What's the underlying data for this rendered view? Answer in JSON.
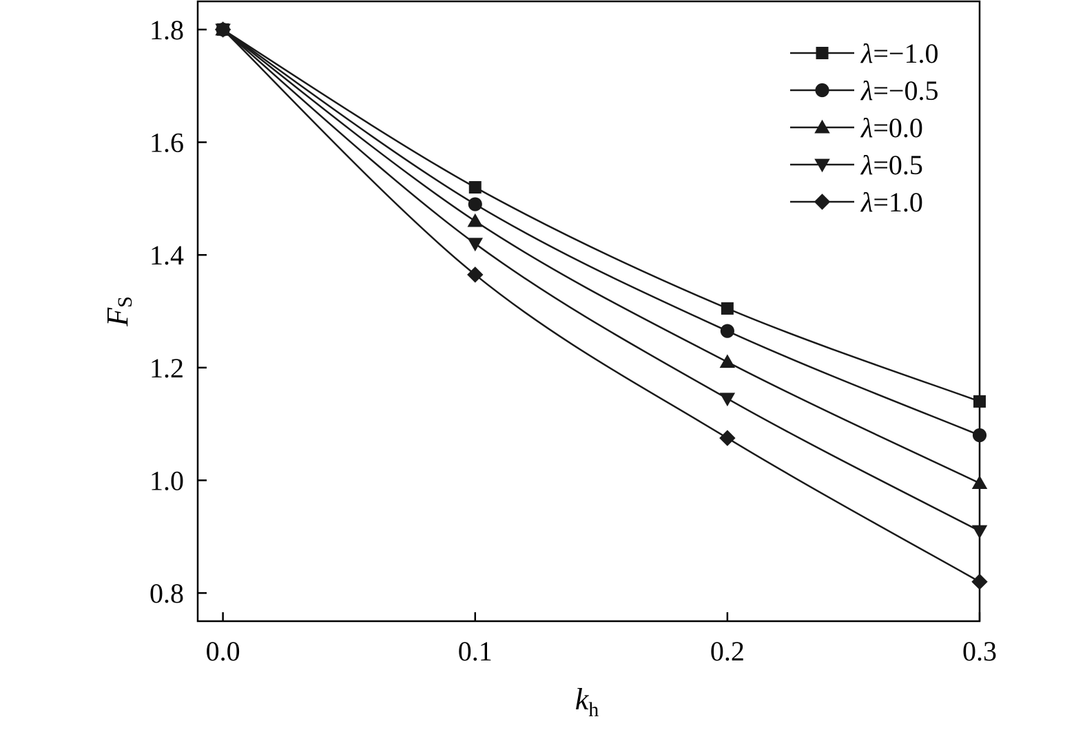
{
  "chart_data": {
    "type": "line",
    "xlabel": {
      "main": "k",
      "sub": "h"
    },
    "ylabel": {
      "main": "F",
      "sub": "S"
    },
    "xlim": [
      -0.01,
      0.3
    ],
    "ylim": [
      0.75,
      1.85
    ],
    "xticks": [
      0.0,
      0.1,
      0.2,
      0.3
    ],
    "xtick_labels": [
      "0.0",
      "0.1",
      "0.2",
      "0.3"
    ],
    "yticks": [
      0.8,
      1.0,
      1.2,
      1.4,
      1.6,
      1.8
    ],
    "ytick_labels": [
      "0.8",
      "1.0",
      "1.2",
      "1.4",
      "1.6",
      "1.8"
    ],
    "x": [
      0.0,
      0.1,
      0.2,
      0.3
    ],
    "legend_position": "top-right",
    "grid": false,
    "series": [
      {
        "symbol": "λ",
        "value_text": "=−1.0",
        "marker": "square",
        "values": [
          1.8,
          1.52,
          1.305,
          1.14
        ]
      },
      {
        "symbol": "λ",
        "value_text": "=−0.5",
        "marker": "circle",
        "values": [
          1.8,
          1.49,
          1.265,
          1.08
        ]
      },
      {
        "symbol": "λ",
        "value_text": "=0.0",
        "marker": "triangle-up",
        "values": [
          1.8,
          1.46,
          1.21,
          0.995
        ]
      },
      {
        "symbol": "λ",
        "value_text": "=0.5",
        "marker": "triangle-down",
        "values": [
          1.8,
          1.42,
          1.145,
          0.91
        ]
      },
      {
        "symbol": "λ",
        "value_text": "=1.0",
        "marker": "diamond",
        "values": [
          1.8,
          1.365,
          1.075,
          0.82
        ]
      }
    ],
    "colors": {
      "line": "#1a1a1a",
      "axis": "#000000"
    }
  }
}
